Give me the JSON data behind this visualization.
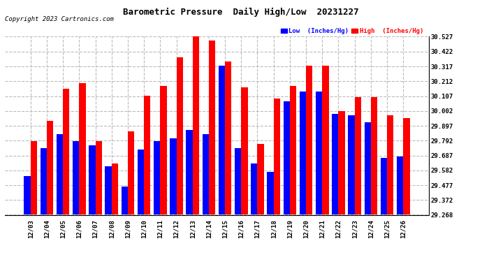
{
  "title": "Barometric Pressure  Daily High/Low  20231227",
  "copyright": "Copyright 2023 Cartronics.com",
  "legend_low": "Low  (Inches/Hg)",
  "legend_high": "High  (Inches/Hg)",
  "dates": [
    "12/03",
    "12/04",
    "12/05",
    "12/06",
    "12/07",
    "12/08",
    "12/09",
    "12/10",
    "12/11",
    "12/12",
    "12/13",
    "12/14",
    "12/15",
    "12/16",
    "12/17",
    "12/18",
    "12/19",
    "12/20",
    "12/21",
    "12/22",
    "12/23",
    "12/24",
    "12/25",
    "12/26"
  ],
  "high": [
    29.79,
    29.93,
    30.16,
    30.2,
    29.79,
    29.63,
    29.86,
    30.11,
    30.18,
    30.38,
    30.53,
    30.5,
    30.35,
    30.17,
    29.77,
    30.09,
    30.18,
    30.32,
    30.32,
    30.0,
    30.1,
    30.1,
    29.97,
    29.95
  ],
  "low": [
    29.54,
    29.74,
    29.84,
    29.79,
    29.76,
    29.61,
    29.47,
    29.73,
    29.79,
    29.81,
    29.87,
    29.84,
    30.32,
    29.74,
    29.63,
    29.57,
    30.07,
    30.14,
    30.14,
    29.98,
    29.97,
    29.92,
    29.67,
    29.68
  ],
  "ylim_min": 29.268,
  "ylim_max": 30.527,
  "yticks": [
    29.268,
    29.372,
    29.477,
    29.582,
    29.687,
    29.792,
    29.897,
    30.002,
    30.107,
    30.212,
    30.317,
    30.422,
    30.527
  ],
  "ytick_labels": [
    "29.268",
    "29.372",
    "29.477",
    "29.582",
    "29.687",
    "29.792",
    "29.897",
    "30.002",
    "30.107",
    "30.212",
    "30.317",
    "30.422",
    "30.527"
  ],
  "color_high": "#ff0000",
  "color_low": "#0000ff",
  "bg_color": "#ffffff",
  "grid_color": "#bbbbbb",
  "bar_width": 0.4
}
